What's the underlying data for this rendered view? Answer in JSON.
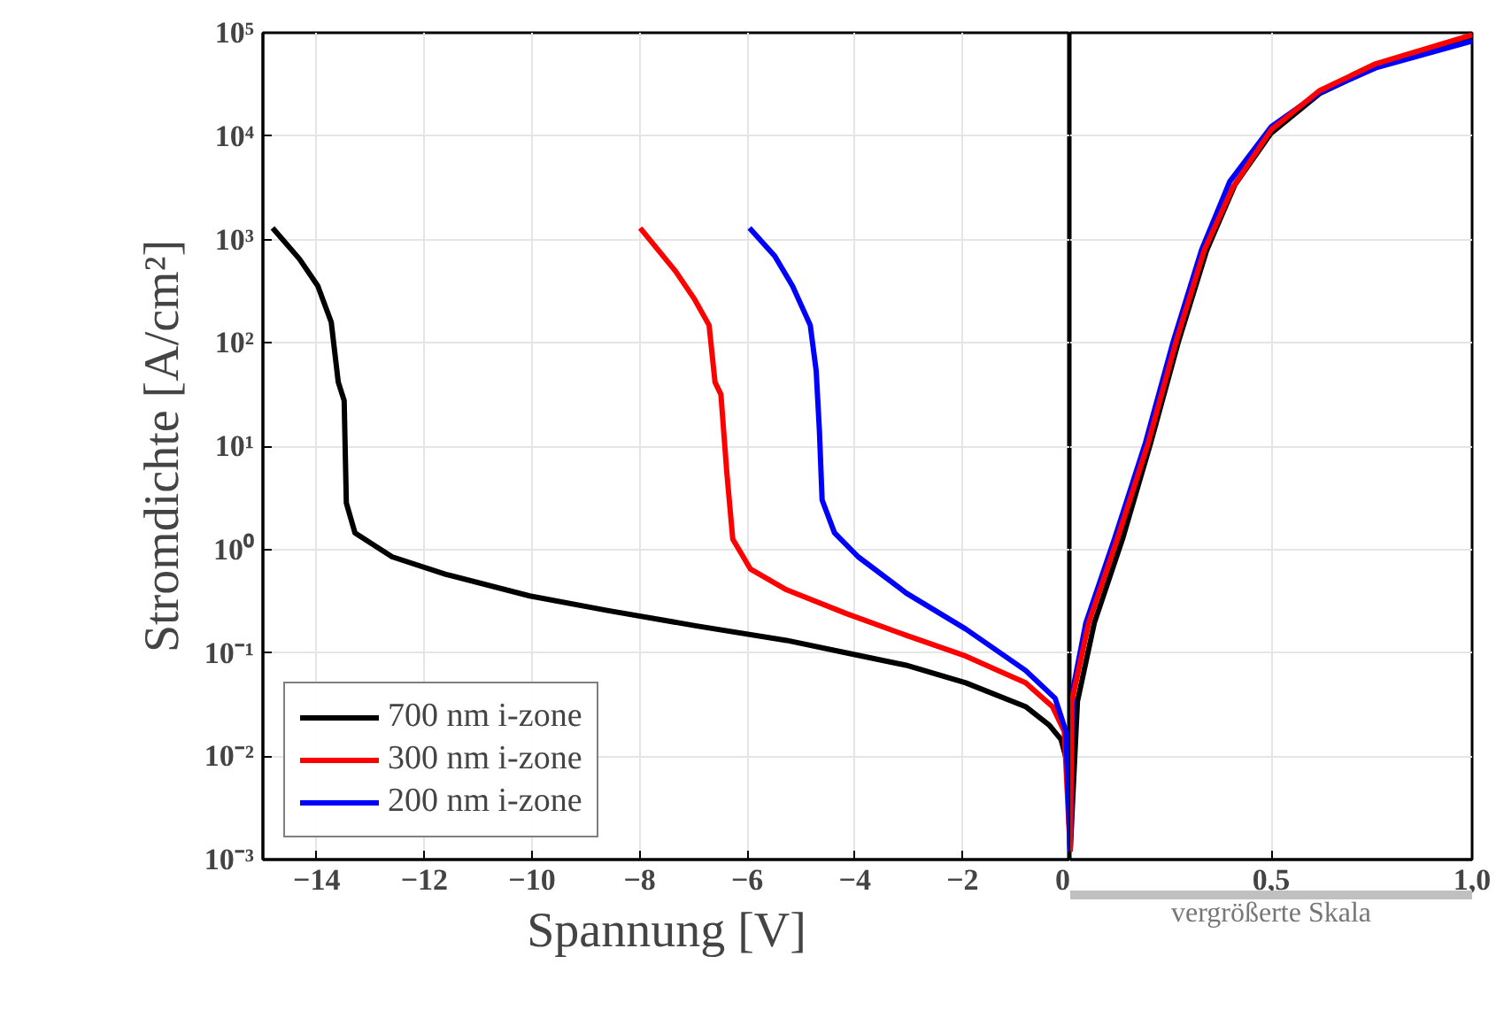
{
  "chart_data": [
    {
      "type": "line",
      "xlabel": "Spannung [V]",
      "ylabel": "Stromdichte [A/cm²]",
      "log": "y",
      "grid": true,
      "legend": "bottom left",
      "line_style": "solid",
      "marker": "none",
      "xlim": [
        -15,
        0
      ],
      "xticks": [
        -14,
        -12,
        -10,
        -8,
        -6,
        -4,
        -2,
        0
      ],
      "ylim": [
        0.001,
        100000
      ],
      "yticks": [
        {
          "value": 0.001,
          "label": "10⁻³"
        },
        {
          "value": 0.01,
          "label": "10⁻²"
        },
        {
          "value": 0.1,
          "label": "10⁻¹"
        },
        {
          "value": 1,
          "label": "10⁰"
        },
        {
          "value": 10,
          "label": "10¹"
        },
        {
          "value": 100,
          "label": "10²"
        },
        {
          "value": 1000,
          "label": "10³"
        },
        {
          "value": 10000,
          "label": "10⁴"
        },
        {
          "value": 100000,
          "label": "10⁵"
        }
      ],
      "series": [
        {
          "name": "700 nm i-zone",
          "color": "#000000",
          "x": [
            -14.82,
            -14.32,
            -13.98,
            -13.73,
            -13.6,
            -13.49,
            -13.45,
            -13.29,
            -12.6,
            -11.6,
            -10.04,
            -8.6,
            -6.94,
            -5.27,
            -4.16,
            -3.05,
            -1.94,
            -0.83,
            -0.39,
            -0.17,
            -0.06,
            0
          ],
          "values": [
            1290,
            646,
            355,
            158,
            41.7,
            27.5,
            2.82,
            1.45,
            0.85,
            0.575,
            0.355,
            0.257,
            0.182,
            0.132,
            0.1,
            0.0759,
            0.0513,
            0.0302,
            0.02,
            0.0145,
            0.0089,
            0.0012
          ]
        },
        {
          "name": "300 nm i-zone",
          "color": "#ff0000",
          "x": [
            -7.99,
            -7.33,
            -6.99,
            -6.71,
            -6.6,
            -6.49,
            -6.38,
            -6.27,
            -5.94,
            -5.27,
            -4.16,
            -3.05,
            -1.94,
            -0.83,
            -0.33,
            -0.11,
            0
          ],
          "values": [
            1290,
            490,
            269,
            148,
            41.7,
            31.6,
            5.5,
            1.26,
            0.646,
            0.407,
            0.24,
            0.148,
            0.093,
            0.0513,
            0.0302,
            0.0174,
            0.0012
          ]
        },
        {
          "name": "200 nm i-zone",
          "color": "#0000ff",
          "x": [
            -5.96,
            -5.49,
            -5.16,
            -4.83,
            -4.72,
            -4.66,
            -4.61,
            -4.38,
            -3.94,
            -3.05,
            -1.94,
            -0.83,
            -0.28,
            -0.08,
            0
          ],
          "values": [
            1290,
            692,
            355,
            148,
            53.7,
            14.1,
            3.02,
            1.45,
            0.85,
            0.38,
            0.17,
            0.0676,
            0.0363,
            0.0174,
            0.0012
          ]
        }
      ]
    },
    {
      "type": "line",
      "log": "y",
      "grid": true,
      "tick_labels": "x",
      "line_style": "solid",
      "marker": "none",
      "annotations": [
        "vergrößerte Skala"
      ],
      "xlim": [
        0,
        1
      ],
      "xticks": [
        {
          "value": 0.5,
          "label": "0,5"
        },
        {
          "value": 1,
          "label": "1,0"
        }
      ],
      "ylim": [
        0.001,
        100000
      ],
      "yticks": [
        0.001,
        0.01,
        0.1,
        1,
        10,
        100,
        1000,
        10000,
        100000
      ],
      "series": [
        {
          "color": "#000000",
          "x": [
            0,
            0.018,
            0.06,
            0.13,
            0.2,
            0.27,
            0.34,
            0.41,
            0.5,
            0.62,
            0.76,
            1.0
          ],
          "values": [
            0.0012,
            0.0339,
            0.195,
            1.26,
            10.7,
            105,
            794,
            3390,
            10700,
            25700,
            46800,
            87100
          ]
        },
        {
          "color": "#0000ff",
          "x": [
            0,
            0.007,
            0.039,
            0.11,
            0.187,
            0.257,
            0.327,
            0.397,
            0.5,
            0.62,
            0.76,
            1.0
          ],
          "values": [
            0.0012,
            0.0447,
            0.195,
            1.26,
            10.7,
            105,
            794,
            3630,
            12300,
            26300,
            45700,
            83200
          ]
        },
        {
          "color": "#ff0000",
          "x": [
            0,
            0.004,
            0.046,
            0.117,
            0.194,
            0.264,
            0.334,
            0.404,
            0.5,
            0.62,
            0.76,
            1.0
          ],
          "values": [
            0.0012,
            0.0339,
            0.195,
            1.26,
            10.7,
            105,
            794,
            3160,
            11500,
            27500,
            50100,
            95500
          ]
        }
      ]
    }
  ]
}
